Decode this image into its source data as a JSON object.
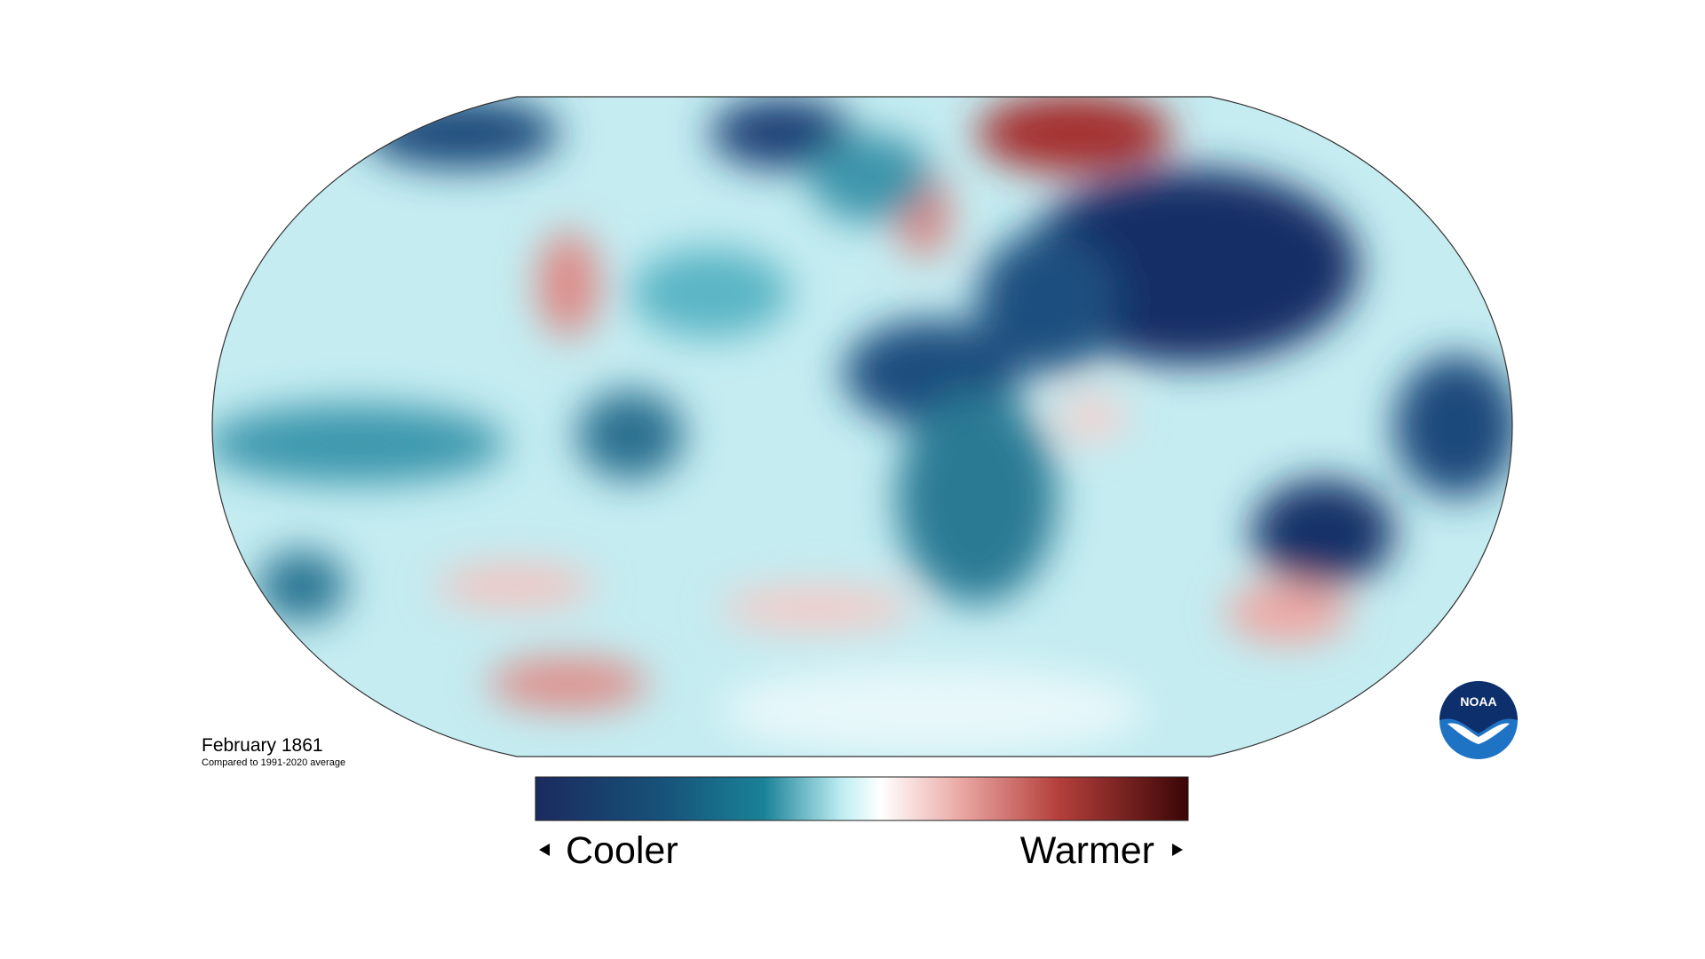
{
  "title": "February 1861",
  "subtitle": "Compared to 1991-2020 average",
  "legend": {
    "low": "Cooler",
    "high": "Warmer"
  },
  "logo": "NOAA"
}
